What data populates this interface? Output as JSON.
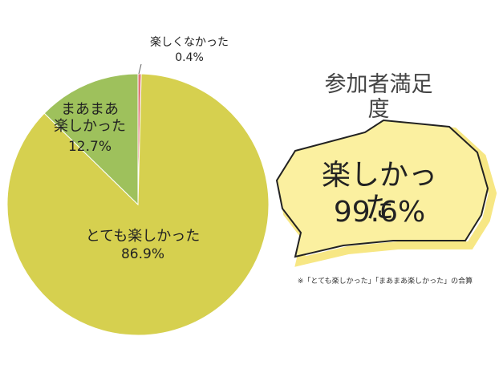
{
  "chart_data": {
    "type": "pie",
    "title": "参加者満足度",
    "categories": [
      "楽しくなかった",
      "とても楽しかった",
      "まあまあ\n楽しかった"
    ],
    "values": [
      0.4,
      86.9,
      12.7
    ],
    "value_labels": [
      "0.4%",
      "86.9%",
      "12.7%"
    ],
    "colors": [
      "#e07878",
      "#d6d04f",
      "#9ec15c"
    ],
    "annotation": [
      "楽しかった",
      "99.6%"
    ],
    "footnote": "※「とても楽しかった」「まあまあ楽しかった」の合算"
  }
}
